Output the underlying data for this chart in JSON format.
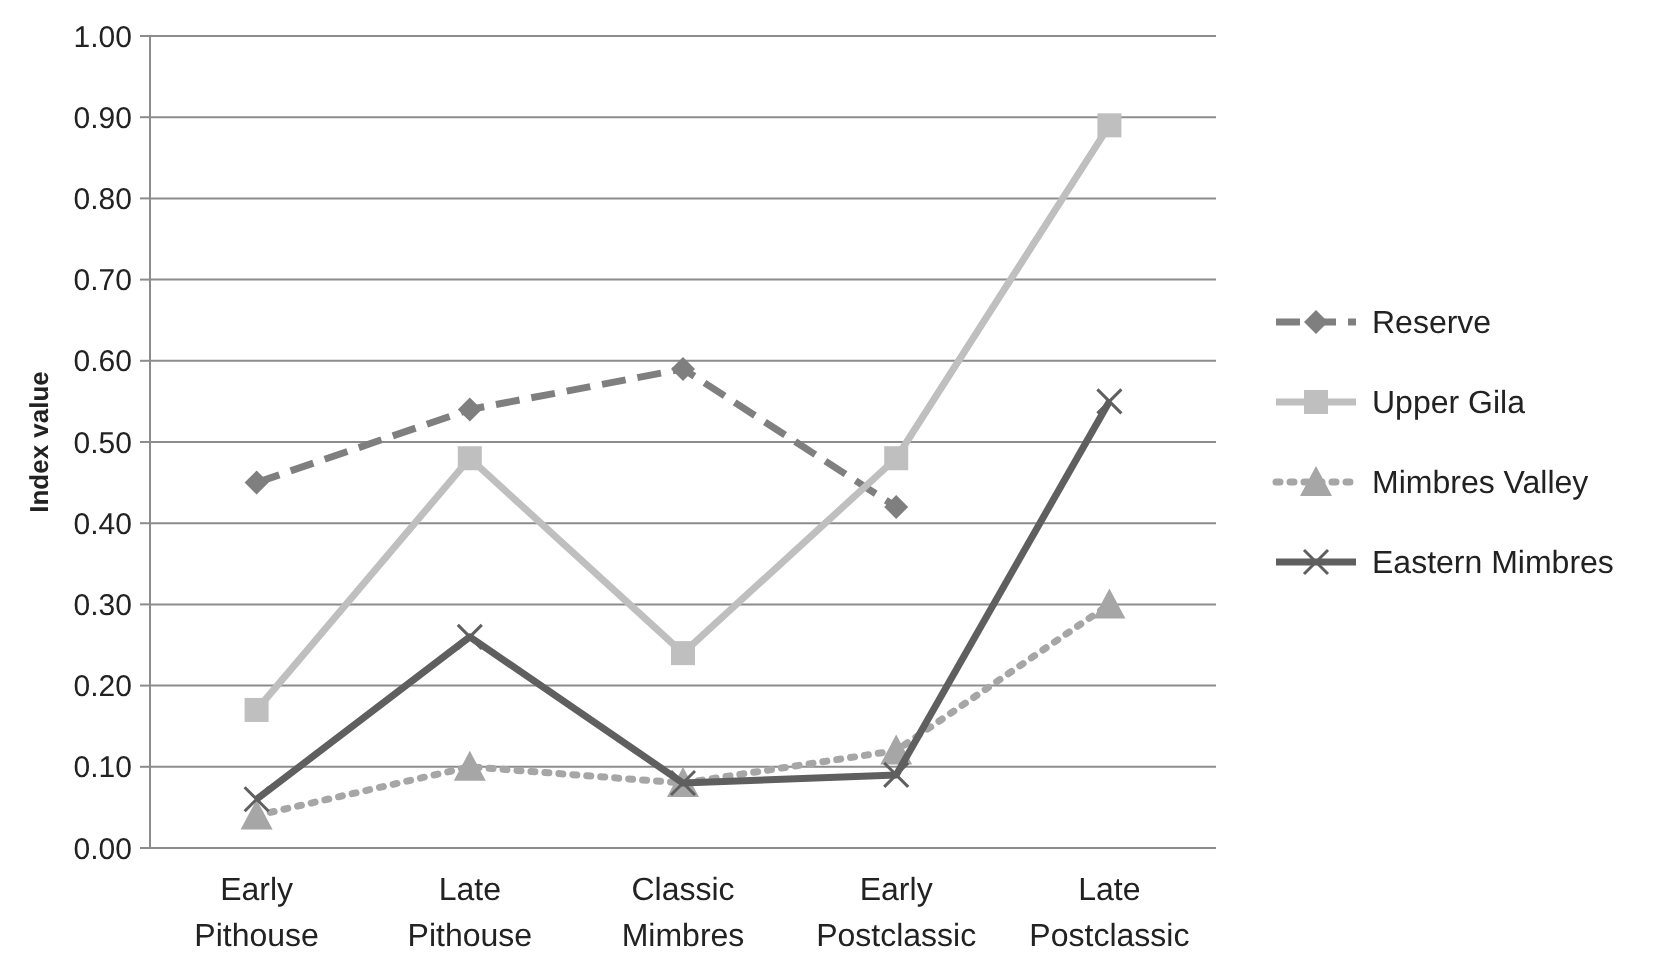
{
  "chart_data": {
    "type": "line",
    "ylabel": "Index value",
    "categories": [
      "Early Pithouse",
      "Late Pithouse",
      "Classic Mimbres",
      "Early Postclassic",
      "Late Postclassic"
    ],
    "series": [
      {
        "name": "Reserve",
        "color": "#7f7f7f",
        "marker": "diamond",
        "line_style": "dashed",
        "values": [
          0.45,
          0.54,
          0.59,
          0.42,
          null
        ]
      },
      {
        "name": "Upper Gila",
        "color": "#bfbfbf",
        "marker": "square",
        "line_style": "solid",
        "values": [
          0.17,
          0.48,
          0.24,
          0.48,
          0.89
        ]
      },
      {
        "name": "Mimbres Valley",
        "color": "#a6a6a6",
        "marker": "triangle",
        "line_style": "dotted",
        "values": [
          0.04,
          0.1,
          0.08,
          0.12,
          0.3
        ]
      },
      {
        "name": "Eastern Mimbres",
        "color": "#5f5f5f",
        "marker": "cross",
        "line_style": "solid",
        "values": [
          0.06,
          0.26,
          0.08,
          0.09,
          0.55
        ]
      }
    ],
    "ylim": [
      0,
      1
    ],
    "yticks": [
      {
        "value": 0,
        "label": "0.00"
      },
      {
        "value": 0.1,
        "label": "0.10"
      },
      {
        "value": 0.2,
        "label": "0.20"
      },
      {
        "value": 0.3,
        "label": "0.30"
      },
      {
        "value": 0.4,
        "label": "0.40"
      },
      {
        "value": 0.5,
        "label": "0.50"
      },
      {
        "value": 0.6,
        "label": "0.60"
      },
      {
        "value": 0.7,
        "label": "0.70"
      },
      {
        "value": 0.8,
        "label": "0.80"
      },
      {
        "value": 0.9,
        "label": "0.90"
      },
      {
        "value": 1,
        "label": "1.00"
      }
    ],
    "grid": "y",
    "legend": "right"
  }
}
